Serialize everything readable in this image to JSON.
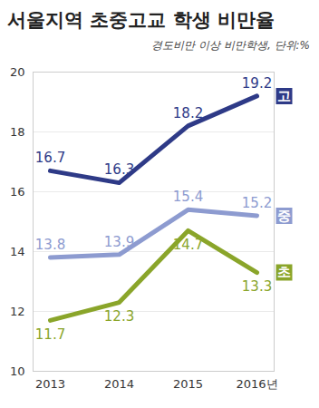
{
  "chart_data": {
    "type": "line",
    "title": "서울지역 초중고교 학생 비만율",
    "subtitle": "경도비만 이상 비만학생, 단위:%",
    "categories": [
      "2013",
      "2014",
      "2015",
      "2016년"
    ],
    "series": [
      {
        "name": "고",
        "color": "#2e3a87",
        "values": [
          16.7,
          16.3,
          18.2,
          19.2
        ]
      },
      {
        "name": "중",
        "color": "#8d9bd0",
        "values": [
          13.8,
          13.9,
          15.4,
          15.2
        ]
      },
      {
        "name": "초",
        "color": "#8aa52a",
        "values": [
          11.7,
          12.3,
          14.7,
          13.3
        ]
      }
    ],
    "ylim": [
      10,
      20
    ],
    "yticks": [
      10,
      12,
      14,
      16,
      18,
      20
    ],
    "grid": true,
    "data_labels": true
  }
}
